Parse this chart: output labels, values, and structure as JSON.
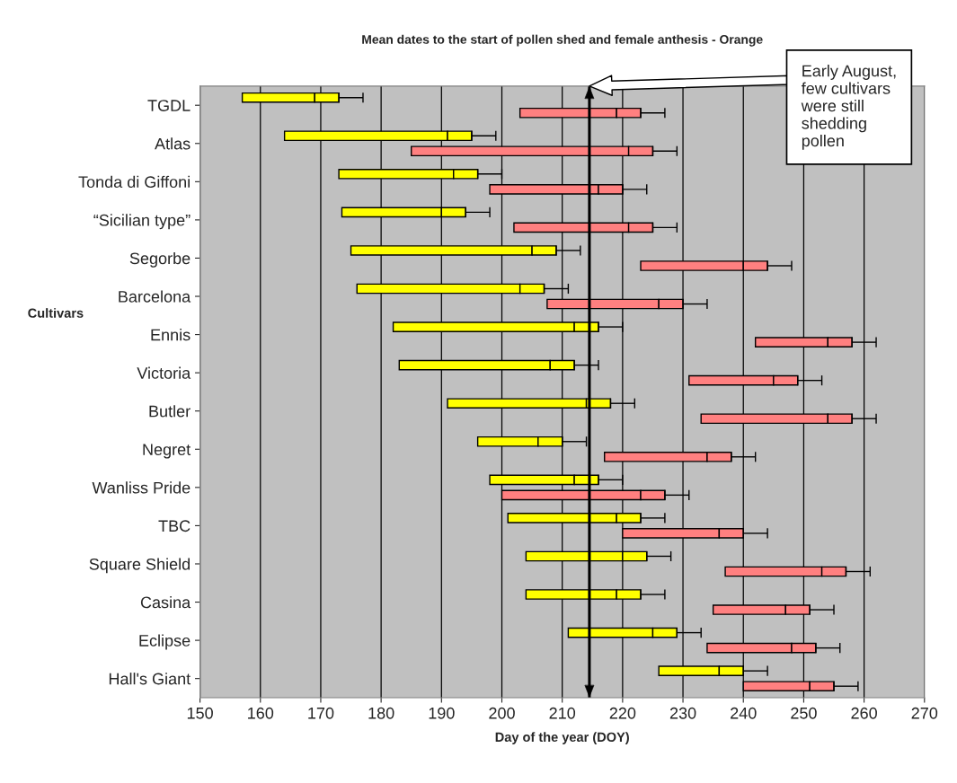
{
  "chart_data": {
    "type": "bar",
    "orientation": "horizontal",
    "title": "Mean dates to the start of pollen shed and female anthesis - Orange",
    "xlabel": "Day of the year (DOY)",
    "ylabel": "Cultivars",
    "categories": [
      "TGDL",
      "Atlas",
      "Tonda di Giffoni",
      "“Sicilian type”",
      "Segorbe",
      "Barcelona",
      "Ennis",
      "Victoria",
      "Butler",
      "Negret",
      "Wanliss Pride",
      "TBC",
      "Square Shield",
      "Casina",
      "Eclipse",
      "Hall's Giant"
    ],
    "series": [
      {
        "color": "#ffff00",
        "base": [
          157,
          164,
          173,
          173.5,
          175,
          176,
          182,
          183,
          191,
          196,
          198,
          201,
          204,
          204,
          211,
          226
        ],
        "values": [
          12,
          27,
          19,
          16.5,
          30,
          27,
          30,
          25,
          23,
          10,
          14,
          18,
          16,
          15,
          14,
          10
        ]
      },
      {
        "color": "#ffff00",
        "base": [
          169,
          191,
          192,
          190,
          205,
          203,
          212,
          208,
          214,
          206,
          212,
          219,
          220,
          219,
          225,
          236
        ],
        "values": [
          4,
          4,
          4,
          4,
          4,
          4,
          4,
          4,
          4,
          4,
          4,
          4,
          4,
          4,
          4,
          4
        ],
        "errors": [
          [
            173,
            177
          ],
          [
            195,
            199
          ],
          [
            196,
            200
          ],
          [
            194,
            198
          ],
          [
            209,
            213
          ],
          [
            207,
            211
          ],
          [
            216,
            220
          ],
          [
            212,
            216
          ],
          [
            218,
            222
          ],
          [
            210,
            214
          ],
          [
            216,
            220
          ],
          [
            223,
            227
          ],
          [
            224,
            228
          ],
          [
            223,
            227
          ],
          [
            229,
            233
          ],
          [
            240,
            244
          ]
        ]
      },
      {
        "color": "#ff8080",
        "base": [
          203,
          185,
          198,
          202,
          223,
          207.5,
          242,
          231,
          233,
          217,
          200,
          220,
          237,
          235,
          234,
          240
        ],
        "values": [
          16,
          36,
          18,
          19,
          17,
          18.5,
          12,
          14,
          21,
          17,
          23,
          16,
          16,
          12,
          14,
          11
        ]
      },
      {
        "color": "#ff8080",
        "base": [
          219,
          221,
          216,
          221,
          240,
          226,
          254,
          245,
          254,
          234,
          223,
          236,
          253,
          247,
          248,
          251
        ],
        "values": [
          4,
          4,
          4,
          4,
          4,
          4,
          4,
          4,
          4,
          4,
          4,
          4,
          4,
          4,
          4,
          4
        ],
        "errors": [
          [
            223,
            227
          ],
          [
            225,
            229
          ],
          [
            220,
            224
          ],
          [
            225,
            229
          ],
          [
            244,
            248
          ],
          [
            230,
            234
          ],
          [
            258,
            262
          ],
          [
            249,
            253
          ],
          [
            258,
            262
          ],
          [
            238,
            242
          ],
          [
            227,
            231
          ],
          [
            240,
            244
          ],
          [
            257,
            261
          ],
          [
            251,
            255
          ],
          [
            252,
            256
          ],
          [
            255,
            259
          ]
        ]
      }
    ],
    "xlim": [
      150,
      270
    ],
    "xticks": [
      150,
      160,
      170,
      180,
      190,
      200,
      210,
      220,
      230,
      240,
      250,
      260,
      270
    ],
    "grid": "x",
    "ref_lines": [
      {
        "axis": "x",
        "value": 214.5,
        "label": "Early August,\nfew cultivars\nwere still\nshedding\npollen"
      }
    ]
  }
}
